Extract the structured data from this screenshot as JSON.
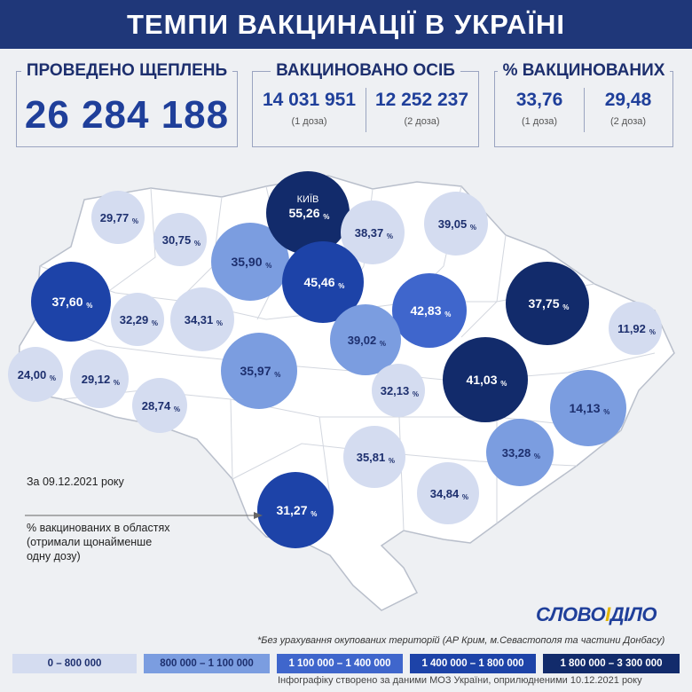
{
  "title": "ТЕМПИ ВАКЦИНАЦІЇ В УКРАЇНІ",
  "stats": {
    "total_label": "ПРОВЕДЕНО ЩЕПЛЕНЬ",
    "total_value": "26 284 188",
    "vaccinated_label": "ВАКЦИНОВАНО ОСІБ",
    "dose1_count": "14 031 951",
    "dose2_count": "12 252 237",
    "percent_label": "% ВАКЦИНОВАНИХ",
    "dose1_percent": "33,76",
    "dose2_percent": "29,48",
    "dose1_caption": "(1 доза)",
    "dose2_caption": "(2 доза)"
  },
  "date_note": "За 09.12.2021 року",
  "map_note": [
    "% вакцинованих в областях",
    "(отримали щонайменше",
    "одну дозу)"
  ],
  "kyiv_label": "КИЇВ",
  "percent_suffix": "%",
  "footnote": "*Без урахування окупованих територій (АР Крим, м.Севастополя та частини Донбасу)",
  "source": "Інфографіку створено за даними МОЗ України, оприлюдненими 10.12.2021 року",
  "logo": {
    "part1": "СЛОВО",
    "sep": "І",
    "part2": "ДІЛО"
  },
  "colors": {
    "tier1": "#d4dcf0",
    "tier2": "#7b9de0",
    "tier3": "#3f66cc",
    "tier4": "#1d43a8",
    "tier5": "#122b6b",
    "header": "#1f3779"
  },
  "legend": [
    {
      "label": "0 – 800 000",
      "tier": 1
    },
    {
      "label": "800 000 – 1 100 000",
      "tier": 2
    },
    {
      "label": "1 100 000 – 1 400 000",
      "tier": 3
    },
    {
      "label": "1 400 000 – 1 800 000",
      "tier": 4
    },
    {
      "label": "1 800 000 – 3 300 000",
      "tier": 5
    }
  ],
  "chart_data": {
    "type": "bubble-map",
    "unit": "% вакцинованих (щонайменше одна доза)",
    "regions": [
      {
        "value": "29,77",
        "tier": 1
      },
      {
        "value": "30,75",
        "tier": 1
      },
      {
        "value": "35,90",
        "tier": 2
      },
      {
        "value": "55,26",
        "tier": 5,
        "label": "КИЇВ"
      },
      {
        "value": "38,37",
        "tier": 1
      },
      {
        "value": "39,05",
        "tier": 1
      },
      {
        "value": "37,60",
        "tier": 4
      },
      {
        "value": "32,29",
        "tier": 1
      },
      {
        "value": "34,31",
        "tier": 1
      },
      {
        "value": "45,46",
        "tier": 4
      },
      {
        "value": "42,83",
        "tier": 3
      },
      {
        "value": "37,75",
        "tier": 5
      },
      {
        "value": "11,92",
        "tier": 1
      },
      {
        "value": "24,00",
        "tier": 1
      },
      {
        "value": "29,12",
        "tier": 1
      },
      {
        "value": "28,74",
        "tier": 1
      },
      {
        "value": "35,97",
        "tier": 2
      },
      {
        "value": "39,02",
        "tier": 2
      },
      {
        "value": "32,13",
        "tier": 1
      },
      {
        "value": "41,03",
        "tier": 5
      },
      {
        "value": "14,13",
        "tier": 2
      },
      {
        "value": "35,81",
        "tier": 1
      },
      {
        "value": "33,28",
        "tier": 2
      },
      {
        "value": "34,84",
        "tier": 1
      },
      {
        "value": "31,27",
        "tier": 4
      }
    ]
  }
}
